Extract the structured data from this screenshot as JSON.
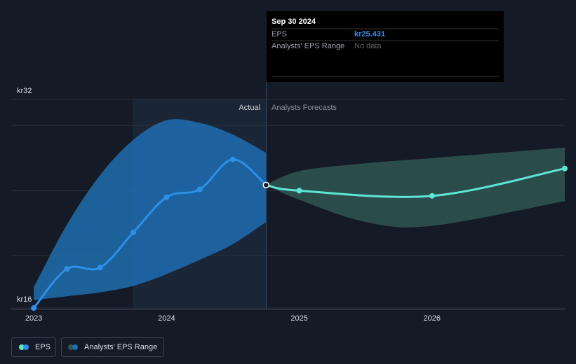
{
  "chart_data": {
    "type": "line",
    "xlim": [
      2022.83,
      2027
    ],
    "xticks": [
      2023,
      2024,
      2025,
      2026
    ],
    "ylim": [
      16,
      32
    ],
    "yticks": [
      {
        "value": 32,
        "label": "kr32"
      },
      {
        "value": 16,
        "label": "kr16"
      }
    ],
    "ygrid": [
      20,
      25,
      30
    ],
    "actual_label": "Actual",
    "forecast_label": "Analysts Forecasts",
    "eps": {
      "name": "EPS",
      "segments": [
        {
          "color": "#2d8fe6",
          "x": [
            2023,
            2023.25,
            2023.5,
            2023.75,
            2024,
            2024.25,
            2024.5,
            2024.75
          ],
          "values": [
            16.0,
            19.0,
            19.1,
            21.8,
            24.5,
            25.1,
            27.4,
            25.431
          ]
        },
        {
          "color": "#5ee6d4",
          "x": [
            2024.75,
            2025,
            2026,
            2027
          ],
          "values": [
            25.431,
            25.0,
            24.6,
            26.7
          ]
        }
      ]
    },
    "range": {
      "name": "Analysts' EPS Range",
      "segments": [
        {
          "color": "#1f6db0",
          "x": [
            2023,
            2023.25,
            2023.5,
            2023.75,
            2024,
            2024.25,
            2024.5,
            2024.75
          ],
          "upper": [
            17.6,
            22.4,
            26.2,
            28.9,
            30.4,
            30.2,
            29.3,
            27.9
          ],
          "lower": [
            16.6,
            16.9,
            17.2,
            17.7,
            18.6,
            19.7,
            20.9,
            22.6
          ]
        },
        {
          "color": "#2e5654",
          "x": [
            2024.75,
            2025,
            2025.5,
            2026,
            2027
          ],
          "upper": [
            25.431,
            26.5,
            27.1,
            27.5,
            28.3
          ],
          "lower": [
            25.431,
            24.3,
            22.6,
            22.3,
            24.2
          ]
        }
      ]
    },
    "tooltip": {
      "date": "Sep 30 2024",
      "rows": [
        {
          "label": "EPS",
          "value": "kr25.431"
        },
        {
          "label": "Analysts' EPS Range",
          "value": "No data"
        }
      ]
    }
  }
}
